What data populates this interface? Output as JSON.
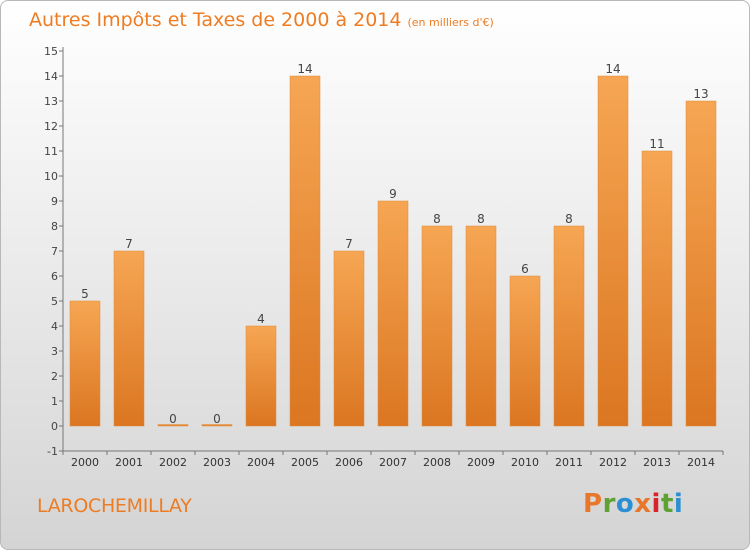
{
  "header": {
    "title": "Autres Impôts et Taxes de 2000 à 2014",
    "subtitle": "(en milliers d'€)"
  },
  "commune": "LAROCHEMILLAY",
  "logo": {
    "text": "Proxiti",
    "colors": [
      "#e8762b",
      "#5fa132",
      "#2d8fd3",
      "#e8762b",
      "#d9232a",
      "#5fa132",
      "#2d8fd3"
    ]
  },
  "colors": {
    "accent": "#ee7c22",
    "bar_light": "#f6a653",
    "bar_dark": "#db7622"
  },
  "chart_data": {
    "type": "bar",
    "categories": [
      "2000",
      "2001",
      "2002",
      "2003",
      "2004",
      "2005",
      "2006",
      "2007",
      "2008",
      "2009",
      "2010",
      "2011",
      "2012",
      "2013",
      "2014"
    ],
    "values": [
      5,
      7,
      0,
      0,
      4,
      14,
      7,
      9,
      8,
      8,
      6,
      8,
      14,
      11,
      13
    ],
    "ylim": [
      -1,
      15
    ],
    "yticks": [
      -1,
      0,
      1,
      2,
      3,
      4,
      5,
      6,
      7,
      8,
      9,
      10,
      11,
      12,
      13,
      14,
      15
    ],
    "grid": false
  }
}
